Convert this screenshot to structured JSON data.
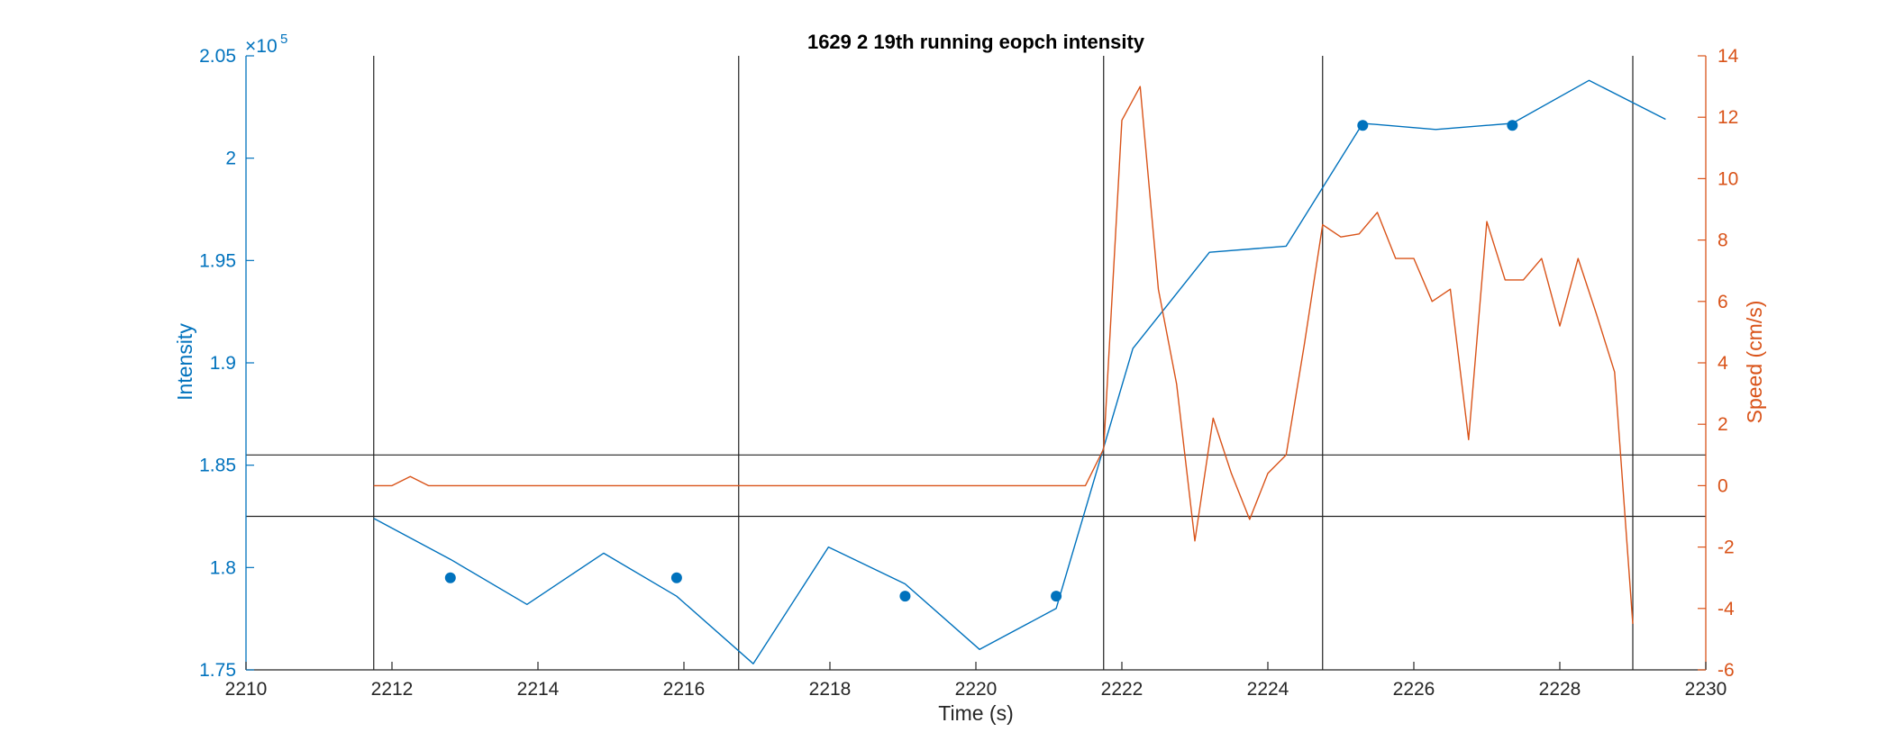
{
  "chart_data": {
    "type": "line",
    "title": "1629 2 19th running eopch intensity",
    "xlabel": "Time (s)",
    "ylabel_left": "Intensity",
    "ylabel_right": "Speed (cm/s)",
    "exponent_label": "×10",
    "exponent_power": "5",
    "xlim": [
      2210,
      2230
    ],
    "ylim_left": [
      175000,
      205000
    ],
    "ylim_right": [
      -6,
      14
    ],
    "x_ticks": [
      "2210",
      "2212",
      "2214",
      "2216",
      "2218",
      "2220",
      "2222",
      "2224",
      "2226",
      "2228",
      "2230"
    ],
    "y_left_ticks": [
      "1.75",
      "1.8",
      "1.85",
      "1.9",
      "1.95",
      "2",
      "2.05"
    ],
    "y_right_ticks": [
      "-6",
      "-4",
      "-2",
      "0",
      "2",
      "4",
      "6",
      "8",
      "10",
      "12",
      "14"
    ],
    "colors": {
      "intensity": "#0072BD",
      "speed": "#D95319",
      "ref": "#222222"
    },
    "series": [
      {
        "name": "Intensity",
        "axis": "left",
        "x": [
          2211.75,
          2212.8,
          2213.85,
          2214.9,
          2215.9,
          2216.95,
          2217.98,
          2219.03,
          2220.05,
          2221.1,
          2222.15,
          2223.2,
          2224.25,
          2225.3,
          2226.3,
          2227.35,
          2228.4,
          2229.45
        ],
        "values": [
          182400,
          180400,
          178200,
          180700,
          178600,
          175300,
          181000,
          179200,
          176000,
          178000,
          190700,
          195400,
          195700,
          201700,
          201400,
          201700,
          203800,
          201900
        ]
      },
      {
        "name": "Intensity markers",
        "axis": "left",
        "marker_only": true,
        "x": [
          2212.8,
          2215.9,
          2219.03,
          2221.1,
          2225.3,
          2227.35
        ],
        "values": [
          179500,
          179500,
          178600,
          178600,
          201600,
          201600
        ]
      },
      {
        "name": "Speed",
        "axis": "right",
        "x": [
          2211.75,
          2212.0,
          2212.25,
          2212.5,
          2212.75,
          2213.0,
          2214.0,
          2215.0,
          2216.0,
          2217.0,
          2218.0,
          2219.0,
          2220.0,
          2221.0,
          2221.5,
          2221.75,
          2222.0,
          2222.25,
          2222.5,
          2222.75,
          2223.0,
          2223.25,
          2223.5,
          2223.75,
          2224.0,
          2224.25,
          2224.5,
          2224.75,
          2225.0,
          2225.25,
          2225.5,
          2225.75,
          2226.0,
          2226.25,
          2226.5,
          2226.75,
          2227.0,
          2227.25,
          2227.5,
          2227.75,
          2228.0,
          2228.25,
          2228.5,
          2228.75,
          2229.0
        ],
        "values": [
          0,
          0,
          0.3,
          0,
          0,
          0,
          0,
          0,
          0,
          0,
          0,
          0,
          0,
          0,
          0,
          1.2,
          11.9,
          13.0,
          6.4,
          3.3,
          -1.8,
          2.2,
          0.4,
          -1.1,
          0.4,
          1.0,
          4.6,
          8.5,
          8.1,
          8.2,
          8.9,
          7.4,
          7.4,
          6.0,
          6.4,
          1.5,
          8.6,
          6.7,
          6.7,
          7.4,
          5.2,
          7.4,
          5.6,
          3.7,
          -4.5
        ]
      }
    ],
    "reference_lines": {
      "vertical_x": [
        2211.75,
        2216.75,
        2221.75,
        2224.75,
        2229.0
      ],
      "horizontal_speed": [
        -1,
        1
      ]
    }
  }
}
